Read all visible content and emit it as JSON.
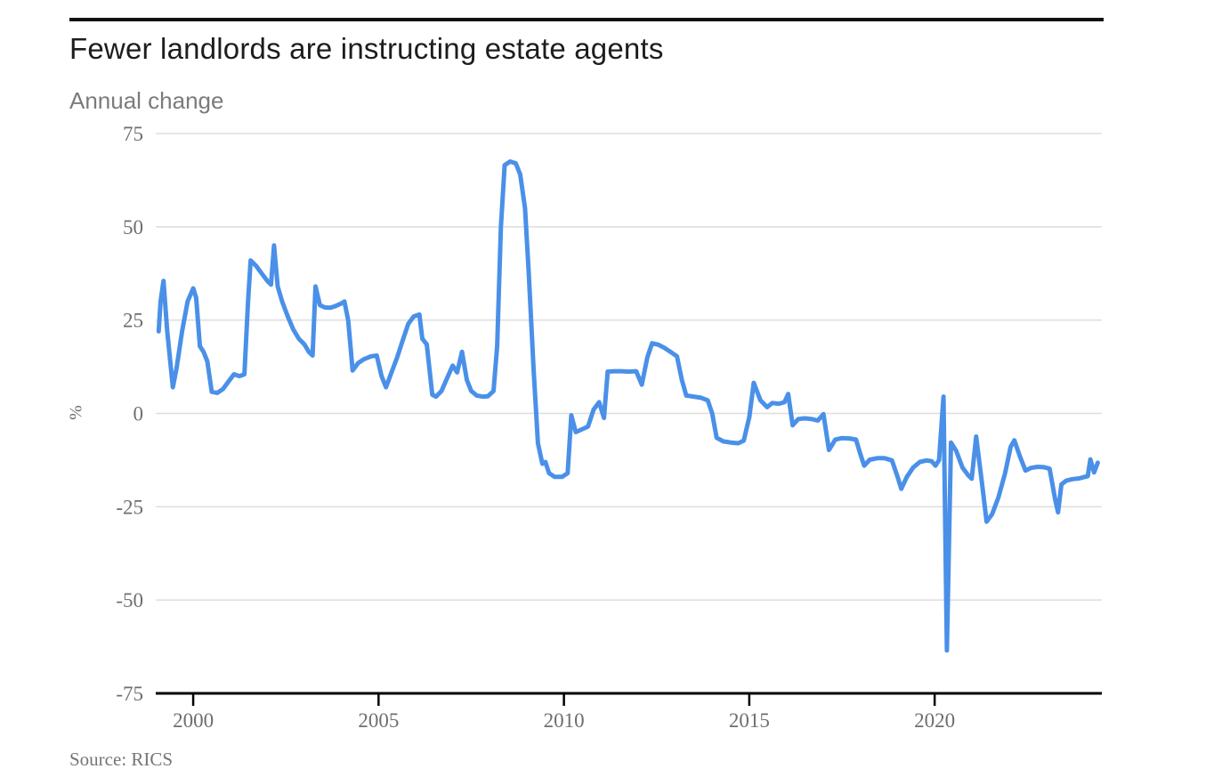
{
  "chart_data": {
    "type": "line",
    "title": "Fewer landlords are instructing estate agents",
    "subtitle": "Annual change",
    "ylabel": "%",
    "source": "Source: RICS",
    "xticks": [
      2000,
      2005,
      2010,
      2015,
      2020
    ],
    "yticks": [
      75,
      50,
      25,
      0,
      -25,
      -50,
      -75
    ],
    "xlim": [
      1998.99,
      2024.51
    ],
    "ylim": [
      -75,
      75
    ],
    "grid": true,
    "legend": "none",
    "colors": {
      "line": "#4a90e8",
      "grid": "#dddddd",
      "axis": "#000000",
      "tick_text": "#6e6e6e",
      "title_text": "#1d1d1d",
      "subtitle_text": "#7b7b7b",
      "source_text": "#757575"
    },
    "points": [
      [
        1999.07,
        22
      ],
      [
        1999.12,
        30
      ],
      [
        1999.2,
        35.5
      ],
      [
        1999.3,
        22
      ],
      [
        1999.45,
        7
      ],
      [
        1999.55,
        12
      ],
      [
        1999.7,
        22
      ],
      [
        1999.85,
        30
      ],
      [
        2000.0,
        33.5
      ],
      [
        2000.08,
        31
      ],
      [
        2000.18,
        18
      ],
      [
        2000.28,
        16.5
      ],
      [
        2000.38,
        14
      ],
      [
        2000.5,
        5.8
      ],
      [
        2000.65,
        5.5
      ],
      [
        2000.8,
        6.5
      ],
      [
        2000.95,
        8.5
      ],
      [
        2001.1,
        10.5
      ],
      [
        2001.25,
        10
      ],
      [
        2001.38,
        10.5
      ],
      [
        2001.48,
        30
      ],
      [
        2001.55,
        41
      ],
      [
        2001.7,
        39.5
      ],
      [
        2001.85,
        37.5
      ],
      [
        2002.0,
        35.5
      ],
      [
        2002.1,
        34.5
      ],
      [
        2002.18,
        45
      ],
      [
        2002.28,
        34
      ],
      [
        2002.4,
        30
      ],
      [
        2002.55,
        26
      ],
      [
        2002.7,
        22.5
      ],
      [
        2002.85,
        20
      ],
      [
        2003.0,
        18.5
      ],
      [
        2003.12,
        16.5
      ],
      [
        2003.22,
        15.5
      ],
      [
        2003.3,
        34
      ],
      [
        2003.42,
        29
      ],
      [
        2003.55,
        28.4
      ],
      [
        2003.7,
        28.3
      ],
      [
        2003.85,
        28.8
      ],
      [
        2004.0,
        29.5
      ],
      [
        2004.08,
        30
      ],
      [
        2004.18,
        25
      ],
      [
        2004.3,
        11.5
      ],
      [
        2004.45,
        13.5
      ],
      [
        2004.6,
        14.5
      ],
      [
        2004.8,
        15.3
      ],
      [
        2004.95,
        15.5
      ],
      [
        2005.08,
        10
      ],
      [
        2005.2,
        7
      ],
      [
        2005.35,
        11
      ],
      [
        2005.5,
        15
      ],
      [
        2005.65,
        19.5
      ],
      [
        2005.8,
        24
      ],
      [
        2005.95,
        26
      ],
      [
        2006.1,
        26.5
      ],
      [
        2006.18,
        20
      ],
      [
        2006.3,
        18.5
      ],
      [
        2006.45,
        5
      ],
      [
        2006.55,
        4.5
      ],
      [
        2006.7,
        6
      ],
      [
        2006.85,
        9.5
      ],
      [
        2007.0,
        12.8
      ],
      [
        2007.12,
        11
      ],
      [
        2007.25,
        16.5
      ],
      [
        2007.38,
        9
      ],
      [
        2007.5,
        6
      ],
      [
        2007.65,
        4.8
      ],
      [
        2007.8,
        4.5
      ],
      [
        2007.95,
        4.6
      ],
      [
        2008.1,
        6
      ],
      [
        2008.2,
        18
      ],
      [
        2008.3,
        50
      ],
      [
        2008.4,
        66.5
      ],
      [
        2008.55,
        67.5
      ],
      [
        2008.7,
        67
      ],
      [
        2008.82,
        64
      ],
      [
        2008.95,
        55
      ],
      [
        2009.05,
        38
      ],
      [
        2009.18,
        12
      ],
      [
        2009.3,
        -8
      ],
      [
        2009.42,
        -13.5
      ],
      [
        2009.5,
        -13
      ],
      [
        2009.6,
        -16
      ],
      [
        2009.75,
        -17
      ],
      [
        2009.95,
        -17
      ],
      [
        2010.1,
        -16
      ],
      [
        2010.2,
        -0.5
      ],
      [
        2010.32,
        -5
      ],
      [
        2010.5,
        -4.2
      ],
      [
        2010.65,
        -3.5
      ],
      [
        2010.8,
        1
      ],
      [
        2010.95,
        3
      ],
      [
        2011.08,
        -1.2
      ],
      [
        2011.18,
        11.2
      ],
      [
        2011.35,
        11.3
      ],
      [
        2011.55,
        11.3
      ],
      [
        2011.75,
        11.2
      ],
      [
        2011.95,
        11.3
      ],
      [
        2012.1,
        7.7
      ],
      [
        2012.25,
        15
      ],
      [
        2012.38,
        18.8
      ],
      [
        2012.55,
        18.4
      ],
      [
        2012.72,
        17.5
      ],
      [
        2012.9,
        16.3
      ],
      [
        2013.05,
        15.3
      ],
      [
        2013.18,
        9
      ],
      [
        2013.3,
        4.8
      ],
      [
        2013.5,
        4.5
      ],
      [
        2013.7,
        4.2
      ],
      [
        2013.88,
        3.5
      ],
      [
        2014.0,
        0
      ],
      [
        2014.12,
        -6.5
      ],
      [
        2014.3,
        -7.5
      ],
      [
        2014.5,
        -7.8
      ],
      [
        2014.7,
        -8
      ],
      [
        2014.85,
        -7.3
      ],
      [
        2015.0,
        -1
      ],
      [
        2015.12,
        8.2
      ],
      [
        2015.3,
        3.5
      ],
      [
        2015.48,
        1.7
      ],
      [
        2015.62,
        2.8
      ],
      [
        2015.8,
        2.6
      ],
      [
        2015.95,
        3
      ],
      [
        2016.05,
        5.2
      ],
      [
        2016.17,
        -3.2
      ],
      [
        2016.32,
        -1.5
      ],
      [
        2016.5,
        -1.3
      ],
      [
        2016.68,
        -1.5
      ],
      [
        2016.85,
        -1.9
      ],
      [
        2017.0,
        -0.2
      ],
      [
        2017.15,
        -9.8
      ],
      [
        2017.32,
        -7
      ],
      [
        2017.5,
        -6.6
      ],
      [
        2017.7,
        -6.7
      ],
      [
        2017.88,
        -7
      ],
      [
        2018.0,
        -11
      ],
      [
        2018.1,
        -14
      ],
      [
        2018.25,
        -12.4
      ],
      [
        2018.45,
        -12
      ],
      [
        2018.65,
        -12
      ],
      [
        2018.85,
        -12.6
      ],
      [
        2019.0,
        -17
      ],
      [
        2019.1,
        -20.2
      ],
      [
        2019.25,
        -17
      ],
      [
        2019.42,
        -14.5
      ],
      [
        2019.6,
        -13
      ],
      [
        2019.78,
        -12.6
      ],
      [
        2019.92,
        -12.8
      ],
      [
        2020.02,
        -14
      ],
      [
        2020.12,
        -12.5
      ],
      [
        2020.24,
        4.5
      ],
      [
        2020.33,
        -63.5
      ],
      [
        2020.44,
        -7.8
      ],
      [
        2020.58,
        -10
      ],
      [
        2020.75,
        -14.5
      ],
      [
        2020.9,
        -16.5
      ],
      [
        2021.0,
        -17.5
      ],
      [
        2021.12,
        -6.2
      ],
      [
        2021.28,
        -19
      ],
      [
        2021.4,
        -29
      ],
      [
        2021.55,
        -27
      ],
      [
        2021.72,
        -22.5
      ],
      [
        2021.9,
        -16
      ],
      [
        2022.05,
        -9
      ],
      [
        2022.15,
        -7.2
      ],
      [
        2022.3,
        -11.5
      ],
      [
        2022.45,
        -15.3
      ],
      [
        2022.6,
        -14.6
      ],
      [
        2022.78,
        -14.3
      ],
      [
        2022.95,
        -14.4
      ],
      [
        2023.1,
        -14.8
      ],
      [
        2023.25,
        -23
      ],
      [
        2023.33,
        -26.5
      ],
      [
        2023.42,
        -19
      ],
      [
        2023.55,
        -18
      ],
      [
        2023.72,
        -17.6
      ],
      [
        2023.9,
        -17.4
      ],
      [
        2024.05,
        -17
      ],
      [
        2024.13,
        -16.8
      ],
      [
        2024.2,
        -12.3
      ],
      [
        2024.3,
        -15.8
      ],
      [
        2024.4,
        -13.2
      ]
    ]
  }
}
